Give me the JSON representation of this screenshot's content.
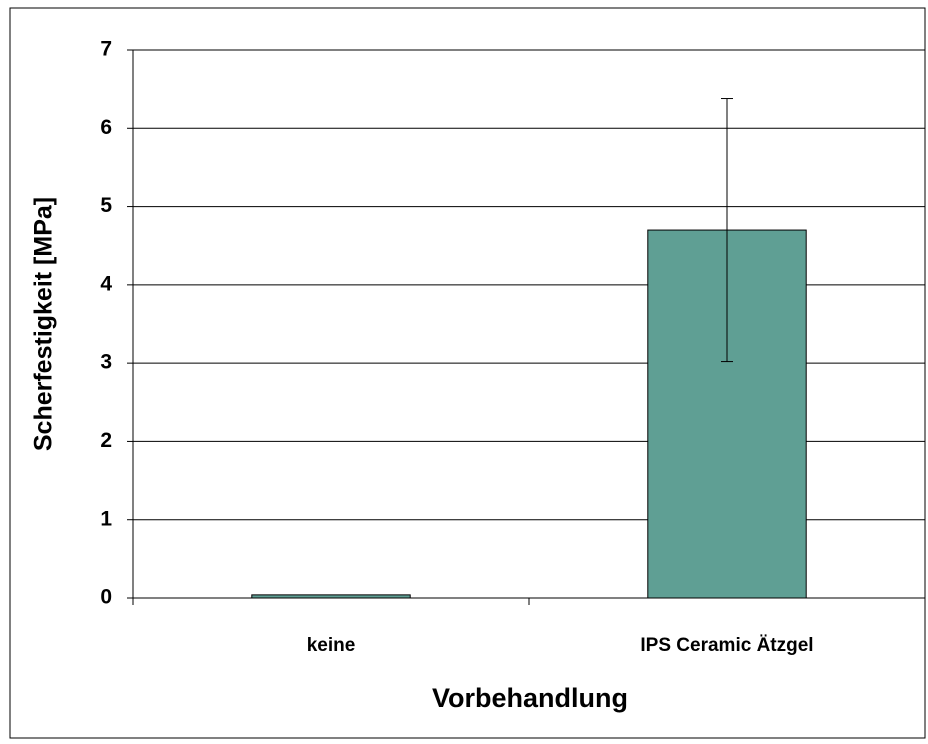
{
  "chart_data": {
    "type": "bar",
    "categories": [
      "keine",
      "IPS Ceramic Ätzgel"
    ],
    "values": [
      0.04,
      4.7
    ],
    "errors": [
      null,
      1.68
    ],
    "color": "#5f9f94",
    "xlabel": "Vorbehandlung",
    "ylabel": "Scherfestigkeit [MPa]",
    "ylim": [
      0,
      7
    ],
    "yticks": [
      0,
      1,
      2,
      3,
      4,
      5,
      6,
      7
    ],
    "grid": true
  }
}
